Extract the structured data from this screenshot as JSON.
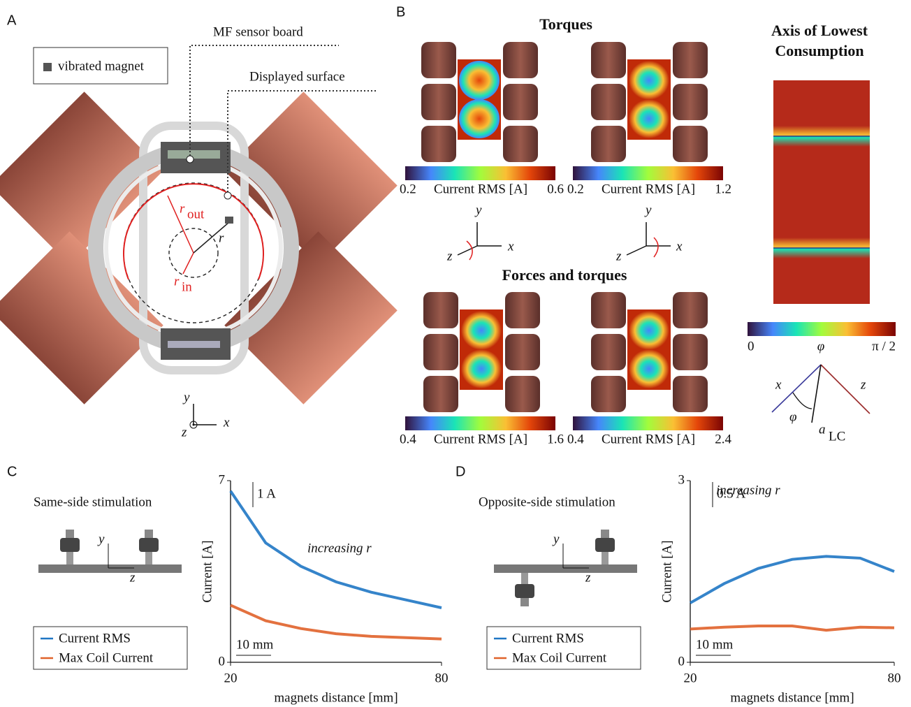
{
  "panels": {
    "a": {
      "label": "A",
      "legend": "vibrated magnet",
      "sensor_label": "MF sensor board",
      "surface_label": "Displayed surface",
      "r_out": "r",
      "r_out_sub": "out",
      "r_in": "r",
      "r_in_sub": "in",
      "r": "r",
      "axis_y": "y",
      "axis_x": "x",
      "axis_z": "z"
    },
    "b": {
      "label": "B",
      "torques_title": "Torques",
      "forces_title": "Forces and torques",
      "colorbars": [
        {
          "min": "0.2",
          "label": "Current RMS [A]",
          "max": "0.6"
        },
        {
          "min": "0.2",
          "label": "Current RMS [A]",
          "max": "1.2"
        },
        {
          "min": "0.4",
          "label": "Current RMS [A]",
          "max": "1.6"
        },
        {
          "min": "0.4",
          "label": "Current RMS [A]",
          "max": "2.4"
        }
      ],
      "axes_left": {
        "y": "y",
        "x": "x",
        "z": "z"
      },
      "axes_right": {
        "y": "y",
        "x": "x",
        "z": "z"
      },
      "lc_title": [
        "Axis of Lowest",
        "Consumption"
      ],
      "lc_colorbar": {
        "min": "0",
        "mid": "φ",
        "max": "π / 2"
      },
      "lc_axes": {
        "x": "x",
        "z": "z",
        "phi": "φ",
        "a": "a",
        "a_sub": "LC"
      }
    },
    "c": {
      "label": "C",
      "title": "Same-side stimulation",
      "axis_y": "y",
      "axis_z": "z"
    },
    "d": {
      "label": "D",
      "title": "Opposite-side stimulation",
      "axis_y": "y",
      "axis_z": "z"
    }
  },
  "chart_data": [
    {
      "type": "line",
      "x_label": "magnets distance [mm]",
      "y_label": "Current [A]",
      "x": [
        20,
        30,
        40,
        50,
        60,
        70,
        80
      ],
      "xlim": [
        20,
        80
      ],
      "xticks": [
        20,
        80
      ],
      "ylim": [
        0,
        7
      ],
      "yticks": [
        0,
        7
      ],
      "series": [
        {
          "name": "Current RMS",
          "color": "#1f77c4",
          "values": [
            6.6,
            4.6,
            3.7,
            3.1,
            2.7,
            2.4,
            2.1
          ]
        },
        {
          "name": "Max Coil Current",
          "color": "#e0622a",
          "values": [
            2.2,
            1.6,
            1.3,
            1.1,
            1.0,
            0.95,
            0.9
          ]
        }
      ],
      "annotations": [
        "increasing r",
        "1 A",
        "10 mm"
      ]
    },
    {
      "type": "line",
      "x_label": "magnets distance [mm]",
      "y_label": "Current [A]",
      "x": [
        20,
        30,
        40,
        50,
        60,
        70,
        80
      ],
      "xlim": [
        20,
        80
      ],
      "xticks": [
        20,
        80
      ],
      "ylim": [
        0,
        3
      ],
      "yticks": [
        0,
        3
      ],
      "series": [
        {
          "name": "Current RMS",
          "color": "#1f77c4",
          "values": [
            0.98,
            1.3,
            1.55,
            1.7,
            1.75,
            1.72,
            1.5
          ]
        },
        {
          "name": "Max Coil Current",
          "color": "#e0622a",
          "values": [
            0.55,
            0.58,
            0.6,
            0.6,
            0.53,
            0.58,
            0.57
          ]
        }
      ],
      "annotations": [
        "increasing r",
        "0.5 A",
        "10 mm"
      ]
    }
  ]
}
